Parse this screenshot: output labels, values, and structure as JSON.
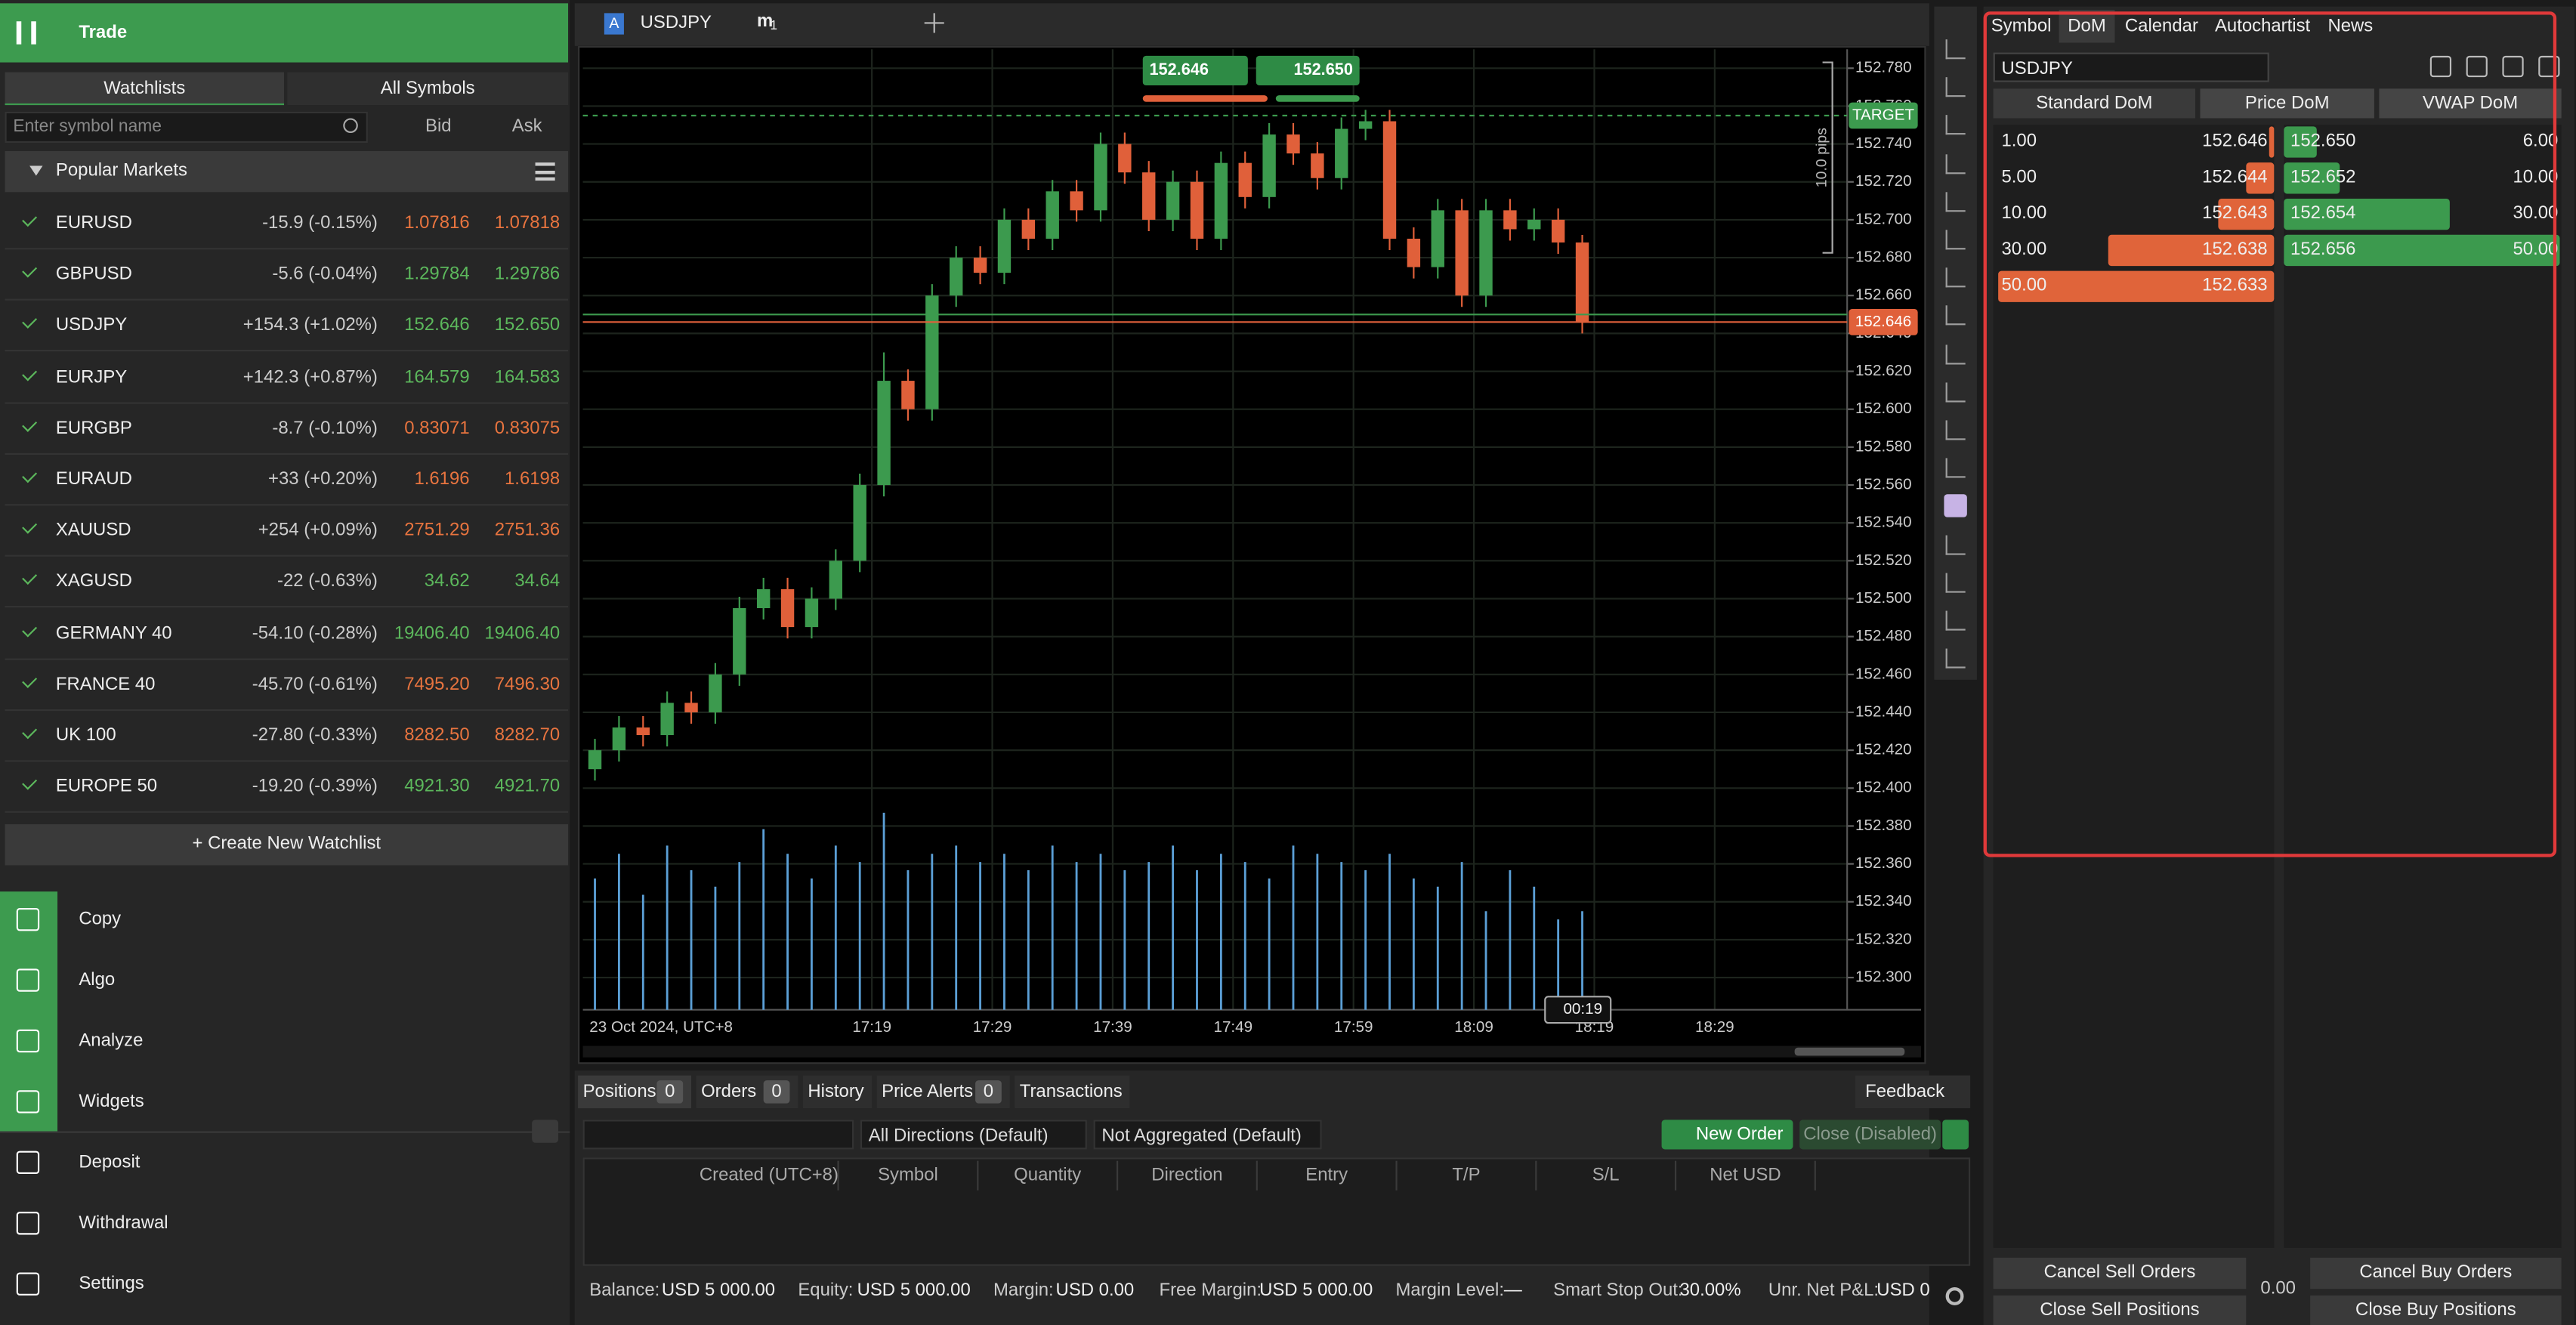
{
  "left_panel": {
    "header": "Trade",
    "tabs": [
      "Watchlists",
      "All Symbols"
    ],
    "search_placeholder": "Enter symbol name",
    "columns": [
      "Bid",
      "Ask"
    ],
    "group": "Popular Markets",
    "watchlist": [
      {
        "symbol": "EURUSD",
        "change": "-15.9 (-0.15%)",
        "bid": "1.07816",
        "ask": "1.07818",
        "color": "#e8743f"
      },
      {
        "symbol": "GBPUSD",
        "change": "-5.6 (-0.04%)",
        "bid": "1.29784",
        "ask": "1.29786",
        "color": "#5cb85c"
      },
      {
        "symbol": "USDJPY",
        "change": "+154.3 (+1.02%)",
        "bid": "152.646",
        "ask": "152.650",
        "color": "#5cb85c"
      },
      {
        "symbol": "EURJPY",
        "change": "+142.3 (+0.87%)",
        "bid": "164.579",
        "ask": "164.583",
        "color": "#5cb85c"
      },
      {
        "symbol": "EURGBP",
        "change": "-8.7 (-0.10%)",
        "bid": "0.83071",
        "ask": "0.83075",
        "color": "#e8743f"
      },
      {
        "symbol": "EURAUD",
        "change": "+33 (+0.20%)",
        "bid": "1.6196",
        "ask": "1.6198",
        "color": "#e8743f"
      },
      {
        "symbol": "XAUUSD",
        "change": "+254 (+0.09%)",
        "bid": "2751.29",
        "ask": "2751.36",
        "color": "#e8743f"
      },
      {
        "symbol": "XAGUSD",
        "change": "-22 (-0.63%)",
        "bid": "34.62",
        "ask": "34.64",
        "color": "#5cb85c"
      },
      {
        "symbol": "GERMANY 40",
        "change": "-54.10 (-0.28%)",
        "bid": "19406.40",
        "ask": "19406.40",
        "color": "#5cb85c"
      },
      {
        "symbol": "FRANCE 40",
        "change": "-45.70 (-0.61%)",
        "bid": "7495.20",
        "ask": "7496.30",
        "color": "#e8743f"
      },
      {
        "symbol": "UK 100",
        "change": "-27.80 (-0.33%)",
        "bid": "8282.50",
        "ask": "8282.70",
        "color": "#e8743f"
      },
      {
        "symbol": "EUROPE 50",
        "change": "-19.20 (-0.39%)",
        "bid": "4921.30",
        "ask": "4921.70",
        "color": "#5cb85c"
      }
    ],
    "create_button": "+ Create New Watchlist",
    "nav": [
      "Copy",
      "Algo",
      "Analyze",
      "Widgets",
      "Deposit",
      "Withdrawal",
      "Settings"
    ]
  },
  "chart": {
    "type": "candlestick",
    "symbol_badge": "A",
    "symbol": "USDJPY",
    "timeframe": "m",
    "timeframe_value": "1",
    "sell_price": "152.646",
    "buy_price": "152.650",
    "target": "TARGET",
    "current_price_label": "152.646",
    "pips": "10.0 pips",
    "date_label": "23 Oct 2024, UTC+8",
    "time_remaining": "00:19",
    "target_price": 152.755,
    "bid_line": 152.646,
    "ask_line": 152.65,
    "up_color": "#3c9a4e",
    "down_color": "#e0603a",
    "volume_color": "#5b9fd6",
    "ylim": [
      152.283,
      152.79
    ],
    "yticks": [
      {
        "value": 152.78,
        "label": "152.780"
      },
      {
        "value": 152.76,
        "label": "152.760"
      },
      {
        "value": 152.74,
        "label": "152.740"
      },
      {
        "value": 152.72,
        "label": "152.720"
      },
      {
        "value": 152.7,
        "label": "152.700"
      },
      {
        "value": 152.68,
        "label": "152.680"
      },
      {
        "value": 152.66,
        "label": "152.660"
      },
      {
        "value": 152.64,
        "label": "152.640"
      },
      {
        "value": 152.62,
        "label": "152.620"
      },
      {
        "value": 152.6,
        "label": "152.600"
      },
      {
        "value": 152.58,
        "label": "152.580"
      },
      {
        "value": 152.56,
        "label": "152.560"
      },
      {
        "value": 152.54,
        "label": "152.540"
      },
      {
        "value": 152.52,
        "label": "152.520"
      },
      {
        "value": 152.5,
        "label": "152.500"
      },
      {
        "value": 152.48,
        "label": "152.480"
      },
      {
        "value": 152.46,
        "label": "152.460"
      },
      {
        "value": 152.44,
        "label": "152.440"
      },
      {
        "value": 152.42,
        "label": "152.420"
      },
      {
        "value": 152.4,
        "label": "152.400"
      },
      {
        "value": 152.38,
        "label": "152.380"
      },
      {
        "value": 152.36,
        "label": "152.360"
      },
      {
        "value": 152.34,
        "label": "152.340"
      },
      {
        "value": 152.32,
        "label": "152.320"
      },
      {
        "value": 152.3,
        "label": "152.300"
      }
    ],
    "xlim": [
      "16:55",
      "18:40"
    ],
    "xticks": [
      "17:19",
      "17:29",
      "17:39",
      "17:49",
      "17:59",
      "18:09",
      "18:19",
      "18:29"
    ],
    "times": [
      "16:56",
      "16:58",
      "17:00",
      "17:02",
      "17:04",
      "17:06",
      "17:08",
      "17:10",
      "17:12",
      "17:14",
      "17:16",
      "17:18",
      "17:20",
      "17:22",
      "17:24",
      "17:26",
      "17:28",
      "17:30",
      "17:32",
      "17:34",
      "17:36",
      "17:38",
      "17:40",
      "17:42",
      "17:44",
      "17:46",
      "17:48",
      "17:50",
      "17:52",
      "17:54",
      "17:56",
      "17:58",
      "18:00",
      "18:02",
      "18:04",
      "18:06",
      "18:08",
      "18:10",
      "18:12",
      "18:14",
      "18:16",
      "18:18"
    ],
    "open": [
      152.41,
      152.42,
      152.432,
      152.428,
      152.445,
      152.44,
      152.46,
      152.495,
      152.505,
      152.485,
      152.5,
      152.52,
      152.56,
      152.615,
      152.6,
      152.66,
      152.68,
      152.672,
      152.7,
      152.69,
      152.715,
      152.705,
      152.74,
      152.725,
      152.7,
      152.72,
      152.69,
      152.73,
      152.712,
      152.745,
      152.735,
      152.722,
      152.748,
      152.752,
      152.69,
      152.675,
      152.705,
      152.66,
      152.705,
      152.695,
      152.7,
      152.688
    ],
    "close": [
      152.42,
      152.432,
      152.428,
      152.445,
      152.44,
      152.46,
      152.495,
      152.505,
      152.485,
      152.5,
      152.52,
      152.56,
      152.615,
      152.6,
      152.66,
      152.68,
      152.672,
      152.7,
      152.69,
      152.715,
      152.705,
      152.74,
      152.725,
      152.7,
      152.72,
      152.69,
      152.73,
      152.712,
      152.745,
      152.735,
      152.722,
      152.748,
      152.752,
      152.69,
      152.675,
      152.705,
      152.66,
      152.705,
      152.695,
      152.7,
      152.688,
      152.646
    ],
    "high": [
      152.426,
      152.438,
      152.438,
      152.451,
      152.451,
      152.466,
      152.501,
      152.511,
      152.511,
      152.506,
      152.526,
      152.566,
      152.63,
      152.621,
      152.666,
      152.686,
      152.686,
      152.706,
      152.706,
      152.721,
      152.721,
      152.746,
      152.746,
      152.731,
      152.726,
      152.726,
      152.736,
      152.736,
      152.751,
      152.751,
      152.741,
      152.754,
      152.758,
      152.758,
      152.696,
      152.711,
      152.711,
      152.711,
      152.711,
      152.706,
      152.706,
      152.692
    ],
    "low": [
      152.404,
      152.414,
      152.422,
      152.422,
      152.434,
      152.434,
      152.454,
      152.489,
      152.479,
      152.479,
      152.494,
      152.514,
      152.554,
      152.594,
      152.594,
      152.654,
      152.666,
      152.666,
      152.684,
      152.684,
      152.699,
      152.699,
      152.719,
      152.694,
      152.694,
      152.684,
      152.684,
      152.706,
      152.706,
      152.729,
      152.716,
      152.716,
      152.742,
      152.684,
      152.669,
      152.669,
      152.654,
      152.654,
      152.689,
      152.689,
      152.682,
      152.64
    ],
    "volume": [
      80,
      95,
      70,
      100,
      85,
      75,
      90,
      110,
      95,
      80,
      100,
      90,
      120,
      85,
      95,
      100,
      90,
      95,
      85,
      100,
      90,
      95,
      85,
      90,
      100,
      85,
      95,
      90,
      80,
      100,
      95,
      90,
      85,
      95,
      80,
      75,
      90,
      60,
      85,
      75,
      55,
      60
    ]
  },
  "bottom_panel": {
    "tabs": [
      {
        "label": "Positions",
        "count": 0
      },
      {
        "label": "Orders",
        "count": 0
      },
      {
        "label": "History"
      },
      {
        "label": "Price Alerts",
        "count": 0
      },
      {
        "label": "Transactions"
      }
    ],
    "feedback": "Feedback",
    "filters": [
      "All Directions (Default)",
      "Not Aggregated (Default)"
    ],
    "new_order": "New Order",
    "close": "Close (Disabled)",
    "columns": [
      "Created (UTC+8)",
      "Symbol",
      "Quantity",
      "Direction",
      "Entry",
      "T/P",
      "S/L",
      "Net USD"
    ],
    "account": [
      {
        "label": "Balance:",
        "value": "USD 5 000.00"
      },
      {
        "label": "Equity:",
        "value": "USD 5 000.00"
      },
      {
        "label": "Margin:",
        "value": "USD 0.00"
      },
      {
        "label": "Free Margin:",
        "value": "USD 5 000.00"
      },
      {
        "label": "Margin Level:",
        "value": "—"
      },
      {
        "label": "Smart Stop Out:",
        "value": "30.00%"
      },
      {
        "label": "Unr. Net P&L:",
        "value": "USD 0"
      }
    ]
  },
  "dom_panel": {
    "tabs": [
      "Symbol",
      "DoM",
      "Calendar",
      "Autochartist",
      "News"
    ],
    "symbol": "USDJPY",
    "modes": [
      "Standard DoM",
      "Price DoM",
      "VWAP DoM"
    ],
    "sell": [
      {
        "volume": "1.00",
        "price": "152.646"
      },
      {
        "volume": "5.00",
        "price": "152.644"
      },
      {
        "volume": "10.00",
        "price": "152.643"
      },
      {
        "volume": "30.00",
        "price": "152.638"
      },
      {
        "volume": "50.00",
        "price": "152.633"
      }
    ],
    "buy": [
      {
        "price": "152.650",
        "volume": "6.00"
      },
      {
        "price": "152.652",
        "volume": "10.00"
      },
      {
        "price": "152.654",
        "volume": "30.00"
      },
      {
        "price": "152.656",
        "volume": "50.00"
      }
    ],
    "cancel_sell": "Cancel Sell Orders",
    "net": "0.00",
    "cancel_buy": "Cancel Buy Orders",
    "close_sell": "Close Sell Positions",
    "close_buy": "Close Buy Positions"
  }
}
